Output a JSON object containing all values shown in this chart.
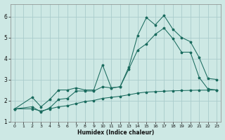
{
  "xlabel": "Humidex (Indice chaleur)",
  "bg_color": "#cde8e4",
  "grid_color": "#aacccc",
  "line_color": "#1a6b5e",
  "xlim": [
    -0.5,
    23.5
  ],
  "ylim": [
    1.0,
    6.6
  ],
  "xticks": [
    0,
    1,
    2,
    3,
    4,
    5,
    6,
    7,
    8,
    9,
    10,
    11,
    12,
    13,
    14,
    15,
    16,
    17,
    18,
    19,
    20,
    21,
    22,
    23
  ],
  "yticks": [
    1,
    2,
    3,
    4,
    5,
    6
  ],
  "line1_x": [
    0,
    2,
    3,
    4,
    5,
    6,
    7,
    8,
    9,
    10,
    11,
    12,
    13,
    14,
    15,
    16,
    17,
    18,
    19,
    20,
    21,
    22,
    23
  ],
  "line1_y": [
    1.6,
    2.15,
    1.7,
    2.05,
    2.5,
    2.5,
    2.6,
    2.5,
    2.5,
    3.7,
    2.6,
    2.65,
    3.6,
    5.1,
    5.95,
    5.6,
    6.05,
    5.4,
    5.0,
    4.8,
    4.05,
    3.05,
    3.0
  ],
  "line2_x": [
    0,
    2,
    3,
    4,
    5,
    6,
    7,
    8,
    9,
    10,
    11,
    12,
    13,
    14,
    15,
    16,
    17,
    18,
    19,
    20,
    21,
    22,
    23
  ],
  "line2_y": [
    1.6,
    1.7,
    1.45,
    1.65,
    2.05,
    2.1,
    2.45,
    2.45,
    2.45,
    2.65,
    2.6,
    2.65,
    3.5,
    4.4,
    4.7,
    5.15,
    5.45,
    4.95,
    4.3,
    4.3,
    3.1,
    2.55,
    2.5
  ],
  "line3_x": [
    0,
    2,
    3,
    4,
    5,
    6,
    7,
    8,
    9,
    10,
    11,
    12,
    13,
    14,
    15,
    16,
    17,
    18,
    19,
    20,
    21,
    22,
    23
  ],
  "line3_y": [
    1.6,
    1.6,
    1.5,
    1.6,
    1.7,
    1.75,
    1.85,
    1.95,
    2.0,
    2.1,
    2.15,
    2.2,
    2.27,
    2.35,
    2.4,
    2.42,
    2.44,
    2.46,
    2.47,
    2.48,
    2.49,
    2.49,
    2.5
  ]
}
